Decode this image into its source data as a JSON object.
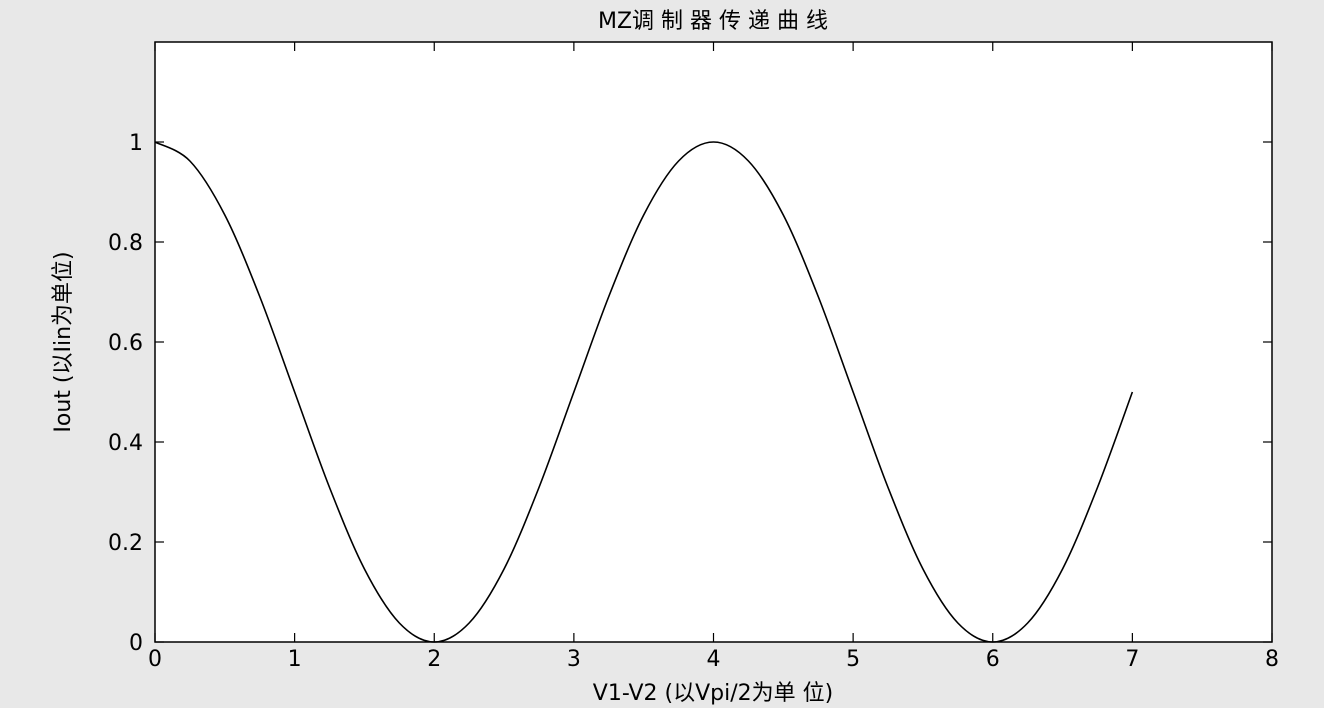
{
  "chart_data": {
    "type": "line",
    "title": "MZ调 制 器 传 递 曲 线",
    "xlabel": "V1-V2   (以Vpi/2为单 位)",
    "ylabel": "Iout  (以Iin为单位)",
    "xlim": [
      0,
      8
    ],
    "ylim": [
      0,
      1.2
    ],
    "xticks": [
      "0",
      "1",
      "2",
      "3",
      "4",
      "5",
      "6",
      "7",
      "8"
    ],
    "yticks": [
      "0",
      "0.2",
      "0.4",
      "0.6",
      "0.8",
      "1"
    ],
    "ytick_values": [
      0,
      0.2,
      0.4,
      0.6,
      0.8,
      1.0
    ],
    "grid": false,
    "series": [
      {
        "x": [
          0,
          0.25,
          0.5,
          0.75,
          1,
          1.25,
          1.5,
          1.75,
          2,
          2.25,
          2.5,
          2.75,
          3,
          3.25,
          3.5,
          3.75,
          4,
          4.25,
          4.5,
          4.75,
          5,
          5.25,
          5.5,
          5.75,
          6,
          6.25,
          6.5,
          6.75,
          7
        ],
        "y": [
          1.0,
          0.962,
          0.854,
          0.691,
          0.5,
          0.309,
          0.146,
          0.038,
          0.0,
          0.038,
          0.146,
          0.309,
          0.5,
          0.691,
          0.854,
          0.962,
          1.0,
          0.962,
          0.854,
          0.691,
          0.5,
          0.309,
          0.146,
          0.038,
          0.0,
          0.038,
          0.146,
          0.309,
          0.5
        ]
      }
    ]
  }
}
